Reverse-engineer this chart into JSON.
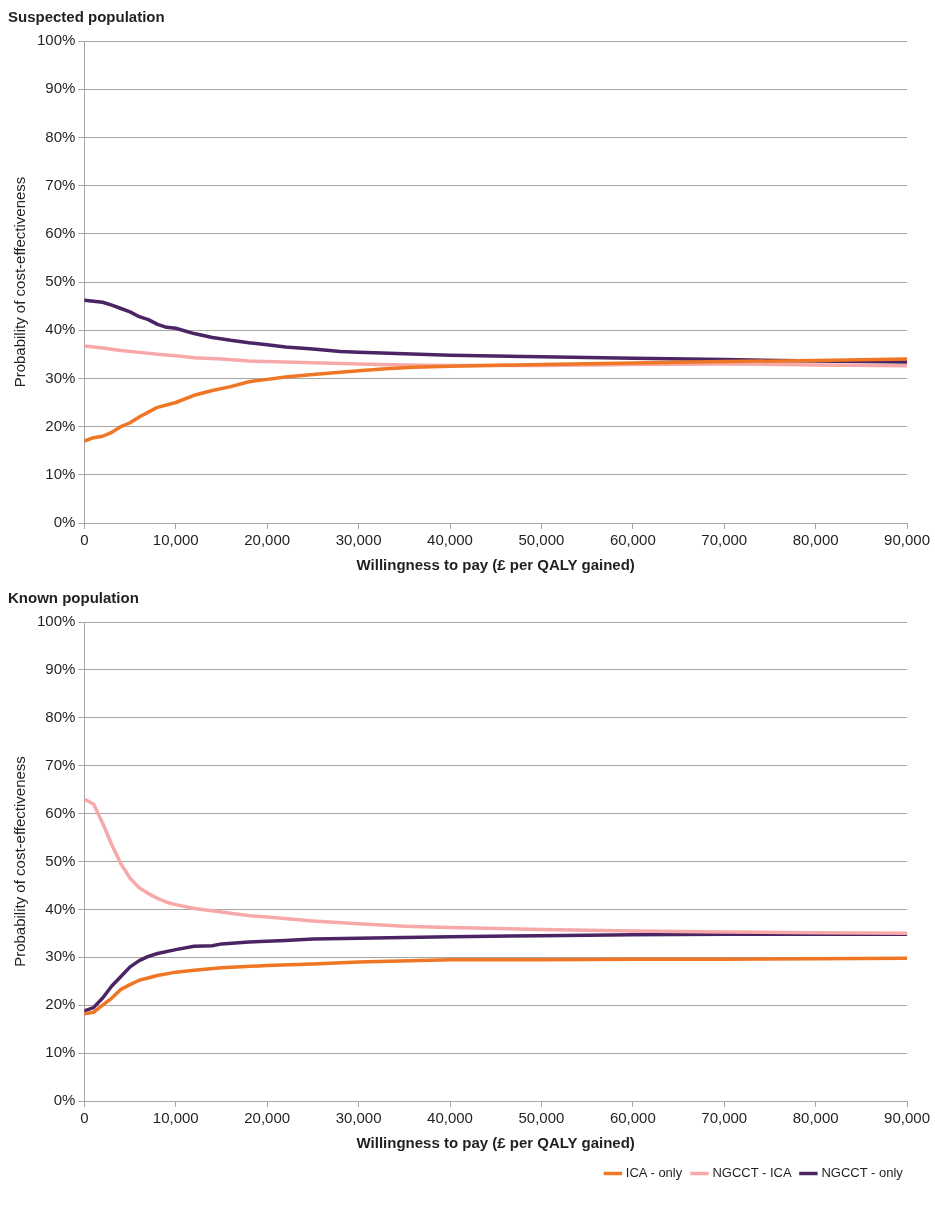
{
  "chart_data": [
    {
      "type": "line",
      "title": "Suspected population",
      "xlabel": "Willingness to pay (£ per QALY gained)",
      "ylabel": "Probability of cost-effectiveness",
      "xlim": [
        0,
        90000
      ],
      "xticks": [
        0,
        {
          "value": 10000,
          "label": "10,000"
        },
        {
          "value": 20000,
          "label": "20,000"
        },
        {
          "value": 30000,
          "label": "30,000"
        },
        {
          "value": 40000,
          "label": "40,000"
        },
        {
          "value": 50000,
          "label": "50,000"
        },
        {
          "value": 60000,
          "label": "60,000"
        },
        {
          "value": 70000,
          "label": "70,000"
        },
        {
          "value": 80000,
          "label": "80,000"
        },
        {
          "value": 90000,
          "label": "90,000"
        }
      ],
      "ylim": [
        0,
        100
      ],
      "yticks": [
        {
          "value": 0,
          "label": "0%"
        },
        {
          "value": 10,
          "label": "10%"
        },
        {
          "value": 20,
          "label": "20%"
        },
        {
          "value": 30,
          "label": "30%"
        },
        {
          "value": 40,
          "label": "40%"
        },
        {
          "value": 50,
          "label": "50%"
        },
        {
          "value": 60,
          "label": "60%"
        },
        {
          "value": 70,
          "label": "70%"
        },
        {
          "value": 80,
          "label": "80%"
        },
        {
          "value": 90,
          "label": "90%"
        },
        {
          "value": 100,
          "label": "100%"
        }
      ],
      "grid": "y",
      "legend": false,
      "series": [
        {
          "color": "#ef7625",
          "x": [
            0,
            1000,
            2000,
            3000,
            4000,
            5000,
            6000,
            7000,
            8000,
            10000,
            12000,
            14000,
            16000,
            18000,
            20000,
            22000,
            25000,
            28000,
            30000,
            33000,
            36000,
            40000,
            50000,
            60000,
            70000,
            80000,
            90000
          ],
          "values": [
            17,
            17.7,
            18,
            18.8,
            20,
            20.8,
            22,
            23,
            24,
            25,
            26.5,
            27.5,
            28.3,
            29.3,
            29.8,
            30.3,
            30.8,
            31.3,
            31.6,
            32,
            32.3,
            32.5,
            32.9,
            33.2,
            33.5,
            33.7,
            34
          ]
        },
        {
          "color": "#f7a8a8",
          "x": [
            0,
            2000,
            4000,
            6000,
            8000,
            10000,
            12000,
            15000,
            18000,
            22000,
            26000,
            30000,
            35000,
            40000,
            50000,
            60000,
            70000,
            80000,
            90000
          ],
          "values": [
            36.7,
            36.3,
            35.8,
            35.4,
            35,
            34.7,
            34.3,
            34,
            33.6,
            33.4,
            33.2,
            33,
            32.8,
            32.7,
            32.7,
            32.9,
            33,
            32.8,
            32.6
          ]
        },
        {
          "color": "#4b2563",
          "x": [
            0,
            1000,
            2000,
            3000,
            4000,
            5000,
            6000,
            7000,
            8000,
            9000,
            10000,
            12000,
            14000,
            16000,
            18000,
            20000,
            22000,
            25000,
            28000,
            30000,
            35000,
            40000,
            50000,
            60000,
            70000,
            80000,
            90000
          ],
          "values": [
            46.2,
            46,
            45.8,
            45.2,
            44.5,
            43.8,
            42.8,
            42.2,
            41.2,
            40.6,
            40.4,
            39.3,
            38.5,
            37.9,
            37.4,
            37,
            36.5,
            36.1,
            35.6,
            35.4,
            35.1,
            34.8,
            34.5,
            34.2,
            33.9,
            33.6,
            33.4
          ]
        }
      ]
    },
    {
      "type": "line",
      "title": "Known population",
      "xlabel": "Willingness to pay (£ per QALY gained)",
      "ylabel": "Probability of cost-effectiveness",
      "xlim": [
        0,
        90000
      ],
      "xticks": [
        0,
        {
          "value": 10000,
          "label": "10,000"
        },
        {
          "value": 20000,
          "label": "20,000"
        },
        {
          "value": 30000,
          "label": "30,000"
        },
        {
          "value": 40000,
          "label": "40,000"
        },
        {
          "value": 50000,
          "label": "50,000"
        },
        {
          "value": 60000,
          "label": "60,000"
        },
        {
          "value": 70000,
          "label": "70,000"
        },
        {
          "value": 80000,
          "label": "80,000"
        },
        {
          "value": 90000,
          "label": "90,000"
        }
      ],
      "ylim": [
        0,
        100
      ],
      "yticks": [
        {
          "value": 0,
          "label": "0%"
        },
        {
          "value": 10,
          "label": "10%"
        },
        {
          "value": 20,
          "label": "20%"
        },
        {
          "value": 30,
          "label": "30%"
        },
        {
          "value": 40,
          "label": "40%"
        },
        {
          "value": 50,
          "label": "50%"
        },
        {
          "value": 60,
          "label": "60%"
        },
        {
          "value": 70,
          "label": "70%"
        },
        {
          "value": 80,
          "label": "80%"
        },
        {
          "value": 90,
          "label": "90%"
        },
        {
          "value": 100,
          "label": "100%"
        }
      ],
      "grid": "y",
      "legend": "bottom right",
      "series": [
        {
          "name": "ICA - only",
          "color": "#ef7625",
          "x": [
            0,
            1000,
            2000,
            3000,
            4000,
            5000,
            6000,
            8000,
            10000,
            12000,
            15000,
            20000,
            25000,
            30000,
            40000,
            50000,
            60000,
            70000,
            80000,
            90000
          ],
          "values": [
            18.2,
            18.5,
            20,
            21.5,
            23.3,
            24.3,
            25.2,
            26.2,
            26.9,
            27.3,
            27.8,
            28.3,
            28.6,
            29,
            29.5,
            29.5,
            29.6,
            29.6,
            29.7,
            29.8
          ]
        },
        {
          "name": "NGCCT - ICA",
          "color": "#f7a8a8",
          "x": [
            0,
            1000,
            2000,
            3000,
            4000,
            5000,
            6000,
            7000,
            8000,
            9000,
            10000,
            12000,
            14000,
            16000,
            18000,
            20000,
            25000,
            30000,
            35000,
            40000,
            50000,
            60000,
            70000,
            80000,
            90000
          ],
          "values": [
            63,
            62,
            58,
            53.5,
            49.5,
            46.5,
            44.5,
            43.3,
            42.3,
            41.5,
            41,
            40.2,
            39.7,
            39.2,
            38.7,
            38.4,
            37.6,
            37,
            36.5,
            36.2,
            35.8,
            35.5,
            35.3,
            35.1,
            35
          ]
        },
        {
          "name": "NGCCT - only",
          "color": "#4b2563",
          "x": [
            0,
            1000,
            2000,
            3000,
            4000,
            5000,
            6000,
            7000,
            8000,
            10000,
            12000,
            14000,
            15000,
            18000,
            22000,
            25000,
            30000,
            40000,
            50000,
            60000,
            70000,
            90000
          ],
          "values": [
            18.8,
            19.5,
            21.5,
            24,
            26,
            28,
            29.3,
            30.2,
            30.8,
            31.6,
            32.3,
            32.4,
            32.8,
            33.2,
            33.5,
            33.8,
            34,
            34.3,
            34.5,
            34.7,
            34.8,
            34.8
          ]
        }
      ]
    }
  ]
}
